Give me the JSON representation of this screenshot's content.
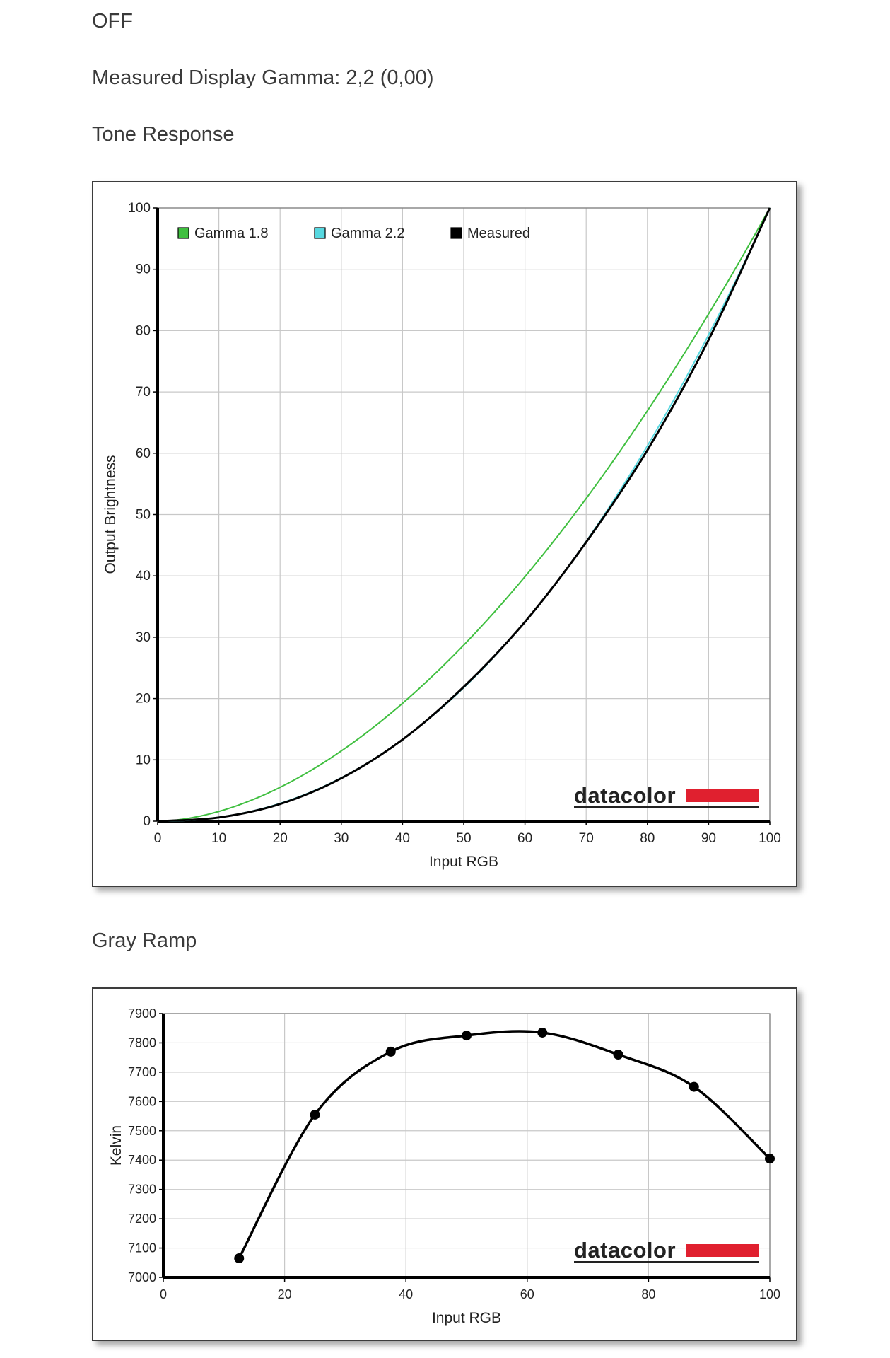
{
  "page": {
    "status": "OFF",
    "gamma_text": "Measured Display Gamma: 2,2 (0,00)",
    "tone_heading": "Tone Response",
    "ramp_heading": "Gray Ramp"
  },
  "logo_text": "datacolor",
  "chart_data": [
    {
      "type": "line",
      "xlabel": "Input RGB",
      "ylabel": "Output Brightness",
      "xlim": [
        0,
        100
      ],
      "ylim": [
        0,
        100
      ],
      "xticks": [
        0,
        10,
        20,
        30,
        40,
        50,
        60,
        70,
        80,
        90,
        100
      ],
      "yticks": [
        0,
        10,
        20,
        30,
        40,
        50,
        60,
        70,
        80,
        90,
        100
      ],
      "grid": true,
      "legend_position": "top-left",
      "colors": {
        "Gamma 1.8": "#3fbf3f",
        "Gamma 2.2": "#57d8e0",
        "Measured": "#000000"
      },
      "series": [
        {
          "name": "Gamma 1.8",
          "curve": "gamma",
          "gamma": 1.8
        },
        {
          "name": "Gamma 2.2",
          "curve": "gamma",
          "gamma": 2.2
        },
        {
          "name": "Measured",
          "x": [
            0,
            10,
            20,
            30,
            40,
            50,
            60,
            70,
            80,
            90,
            100
          ],
          "y": [
            0,
            0.6,
            2.8,
            7.0,
            13.3,
            21.9,
            32.5,
            45.5,
            60.5,
            78.5,
            100
          ]
        }
      ]
    },
    {
      "type": "line",
      "xlabel": "Input RGB",
      "ylabel": "Kelvin",
      "xlim": [
        0,
        100
      ],
      "ylim": [
        7000,
        7900
      ],
      "xticks": [
        0,
        20,
        40,
        60,
        80,
        100
      ],
      "yticks": [
        7000,
        7100,
        7200,
        7300,
        7400,
        7500,
        7600,
        7700,
        7800,
        7900
      ],
      "grid": true,
      "series": [
        {
          "x": [
            12.5,
            25,
            37.5,
            50,
            62.5,
            75,
            87.5,
            100
          ],
          "y": [
            7065,
            7555,
            7770,
            7825,
            7835,
            7760,
            7650,
            7405
          ],
          "markers": true
        }
      ]
    }
  ]
}
